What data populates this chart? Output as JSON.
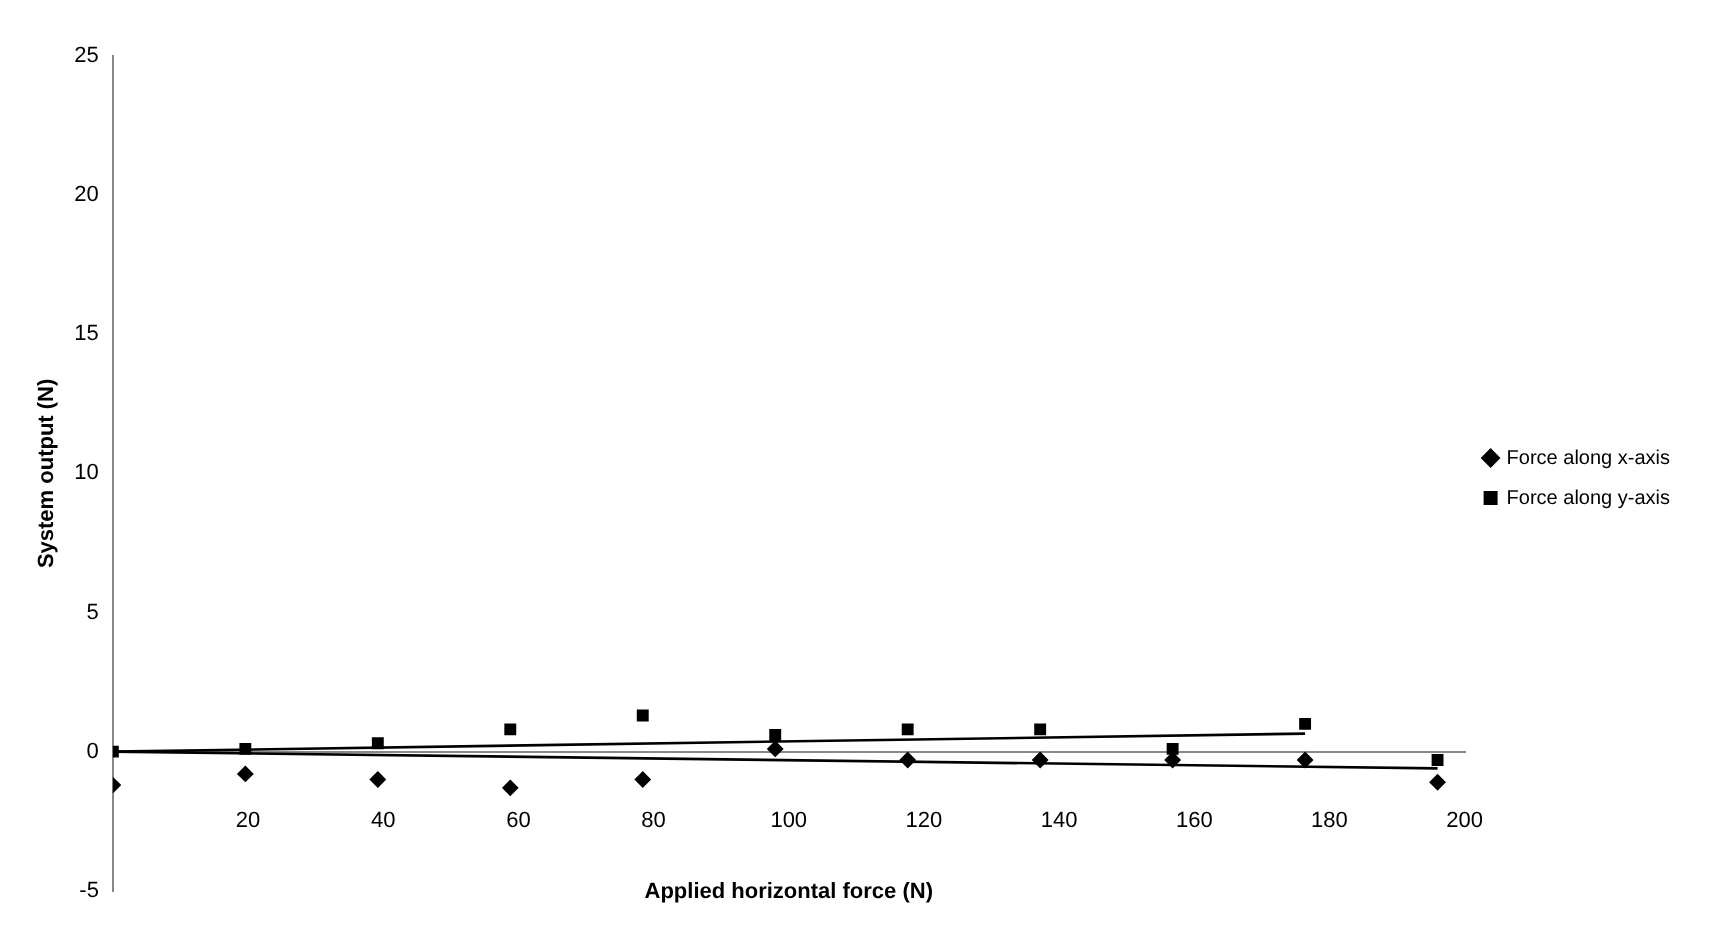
{
  "chart_data": {
    "type": "scatter",
    "xlabel": "Applied horizontal force (N)",
    "ylabel": "System output (N)",
    "xlim": [
      0,
      200
    ],
    "ylim": [
      -5,
      25
    ],
    "xticks": [
      20,
      40,
      60,
      80,
      100,
      120,
      140,
      160,
      180,
      200
    ],
    "yticks": [
      -5,
      0,
      5,
      10,
      15,
      20,
      25
    ],
    "grid": false,
    "legend": "right",
    "series": [
      {
        "name": "Force along x-axis",
        "color": "#000000",
        "marker": "diamond",
        "x": [
          0,
          19.6,
          39.2,
          58.8,
          78.4,
          98,
          117.6,
          137.2,
          156.8,
          176.4,
          196
        ],
        "values": [
          -1.2,
          -0.8,
          -1.0,
          -1.3,
          -1.0,
          0.1,
          -0.3,
          -0.3,
          -0.3,
          -0.3,
          -1.1
        ]
      },
      {
        "name": "Force along y-axis",
        "color": "#000000",
        "marker": "square",
        "x": [
          0,
          19.6,
          39.2,
          58.8,
          78.4,
          98,
          117.6,
          137.2,
          156.8,
          176.4,
          196
        ],
        "values": [
          0,
          0.1,
          0.3,
          0.8,
          1.3,
          0.6,
          0.8,
          0.8,
          0.1,
          1.0,
          -0.3
        ]
      },
      {
        "type": "line",
        "color": "#000000",
        "marker": "none",
        "x": [
          0,
          196
        ],
        "values": [
          0,
          -0.6
        ]
      },
      {
        "type": "line",
        "color": "#000000",
        "marker": "none",
        "x": [
          0,
          176.4
        ],
        "values": [
          0,
          0.65
        ]
      }
    ]
  }
}
